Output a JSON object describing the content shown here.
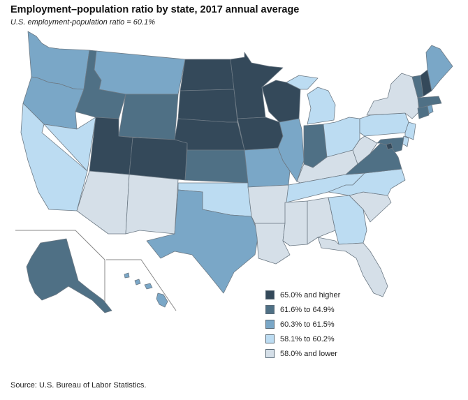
{
  "title": "Employment–population ratio by state, 2017 annual average",
  "subtitle": "U.S. employment-population ratio = 60.1%",
  "source": "Source: U.S. Bureau of Labor Statistics.",
  "colors": {
    "c1": "#34495a",
    "c2": "#4f7085",
    "c3": "#7aa7c7",
    "c4": "#bcdcf2",
    "c5": "#d5dfe8"
  },
  "legend": [
    {
      "label": "65.0% and higher",
      "class": "c1"
    },
    {
      "label": "61.6% to 64.9%",
      "class": "c2"
    },
    {
      "label": "60.3% to 61.5%",
      "class": "c3"
    },
    {
      "label": "58.1% to 60.2%",
      "class": "c4"
    },
    {
      "label": "58.0% and lower",
      "class": "c5"
    }
  ],
  "states": {
    "WA": "c3",
    "OR": "c3",
    "CA": "c4",
    "NV": "c4",
    "ID": "c2",
    "MT": "c3",
    "WY": "c2",
    "UT": "c1",
    "CO": "c1",
    "AZ": "c5",
    "NM": "c5",
    "ND": "c1",
    "SD": "c1",
    "NE": "c1",
    "KS": "c2",
    "OK": "c4",
    "TX": "c3",
    "MN": "c1",
    "IA": "c1",
    "MO": "c3",
    "AR": "c5",
    "LA": "c5",
    "WI": "c1",
    "IL": "c3",
    "MI": "c4",
    "IN": "c2",
    "OH": "c4",
    "KY": "c5",
    "TN": "c4",
    "MS": "c5",
    "AL": "c5",
    "GA": "c4",
    "FL": "c5",
    "SC": "c5",
    "NC": "c4",
    "VA": "c2",
    "WV": "c5",
    "PA": "c4",
    "NY": "c5",
    "VT": "c2",
    "NH": "c1",
    "ME": "c3",
    "MA": "c2",
    "RI": "c3",
    "CT": "c2",
    "NJ": "c4",
    "DE": "c4",
    "MD": "c2",
    "DC": "c1",
    "AK": "c2",
    "HI": "c3"
  }
}
